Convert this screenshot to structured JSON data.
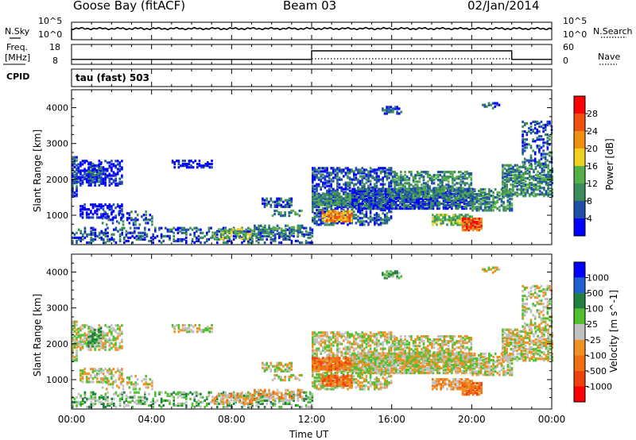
{
  "header": {
    "station": "Goose Bay (fitACF)",
    "beam": "Beam 03",
    "date": "02/Jan/2014"
  },
  "left_labels": {
    "nsky": "N.Sky",
    "freq_line1": "Freq.",
    "freq_line2": "[MHz]",
    "cpid": "CPID"
  },
  "right_labels": {
    "nsearch": "N.Search",
    "nave": "Nave"
  },
  "cpid_text": "tau (fast) 503",
  "top_panel_ticks": {
    "noise_left_top": "10^5",
    "noise_left_bottom": "10^0",
    "noise_right_top": "10^5",
    "noise_right_bottom": "10^0",
    "freq_left_top": "18",
    "freq_left_bottom": "8",
    "nave_right_top": "60",
    "nave_right_bottom": "0"
  },
  "colors": {
    "power_scale": [
      "#0000ff",
      "#204fa8",
      "#3a8c5a",
      "#55b04a",
      "#f0d020",
      "#f09010",
      "#f05010",
      "#ff0000"
    ],
    "velocity_scale": [
      "#0000ff",
      "#2060d0",
      "#208040",
      "#50c030",
      "#c0c0c0",
      "#f09020",
      "#f07010",
      "#f04010",
      "#ff0000"
    ],
    "ground_scatter": "#c0c0c0"
  },
  "chart_data": [
    {
      "type": "line",
      "title": "",
      "xlabel": "Time UT",
      "x_ticks": [
        "00:00",
        "04:00",
        "08:00",
        "12:00",
        "16:00",
        "20:00",
        "00:00"
      ],
      "series": [
        {
          "name": "N.Sky",
          "values_description_hours": [
            0,
            24
          ]
        },
        {
          "name": "Freq.",
          "x_hours": [
            0.0,
            12.0,
            12.0,
            22.0,
            22.0,
            24.0
          ],
          "values": [
            10.5,
            10.5,
            14.8,
            14.8,
            10.5,
            10.5
          ]
        }
      ],
      "y_ticks_left_noise": [
        "10^0",
        "10^5"
      ],
      "y_ticks_left_freq": [
        "8",
        "18"
      ],
      "y_ticks_right_nave": [
        "0",
        "60"
      ]
    },
    {
      "type": "heatmap",
      "title": "",
      "ylabel": "Slant Range [km]",
      "y_ticks": [
        "1000",
        "2000",
        "3000",
        "4000"
      ],
      "ylim": [
        180,
        4500
      ],
      "x_ticks": [
        "00:00",
        "04:00",
        "08:00",
        "12:00",
        "16:00",
        "20:00",
        "00:00"
      ],
      "xlim_hours": [
        0,
        24
      ],
      "colorbar_label": "Power [dB]",
      "colorbar_ticks": [
        "4",
        "8",
        "12",
        "16",
        "20",
        "24",
        "28"
      ]
    },
    {
      "type": "heatmap",
      "title": "",
      "ylabel": "Slant Range [km]",
      "y_ticks": [
        "1000",
        "2000",
        "3000",
        "4000"
      ],
      "ylim": [
        180,
        4500
      ],
      "xlabel": "Time UT",
      "x_ticks": [
        "00:00",
        "04:00",
        "08:00",
        "12:00",
        "16:00",
        "20:00",
        "00:00"
      ],
      "xlim_hours": [
        0,
        24
      ],
      "colorbar_label": "Velocity [m s^-1]",
      "colorbar_ticks": [
        "1000",
        "500",
        "100",
        "25",
        "-25",
        "-100",
        "-500",
        "-1000"
      ]
    }
  ]
}
